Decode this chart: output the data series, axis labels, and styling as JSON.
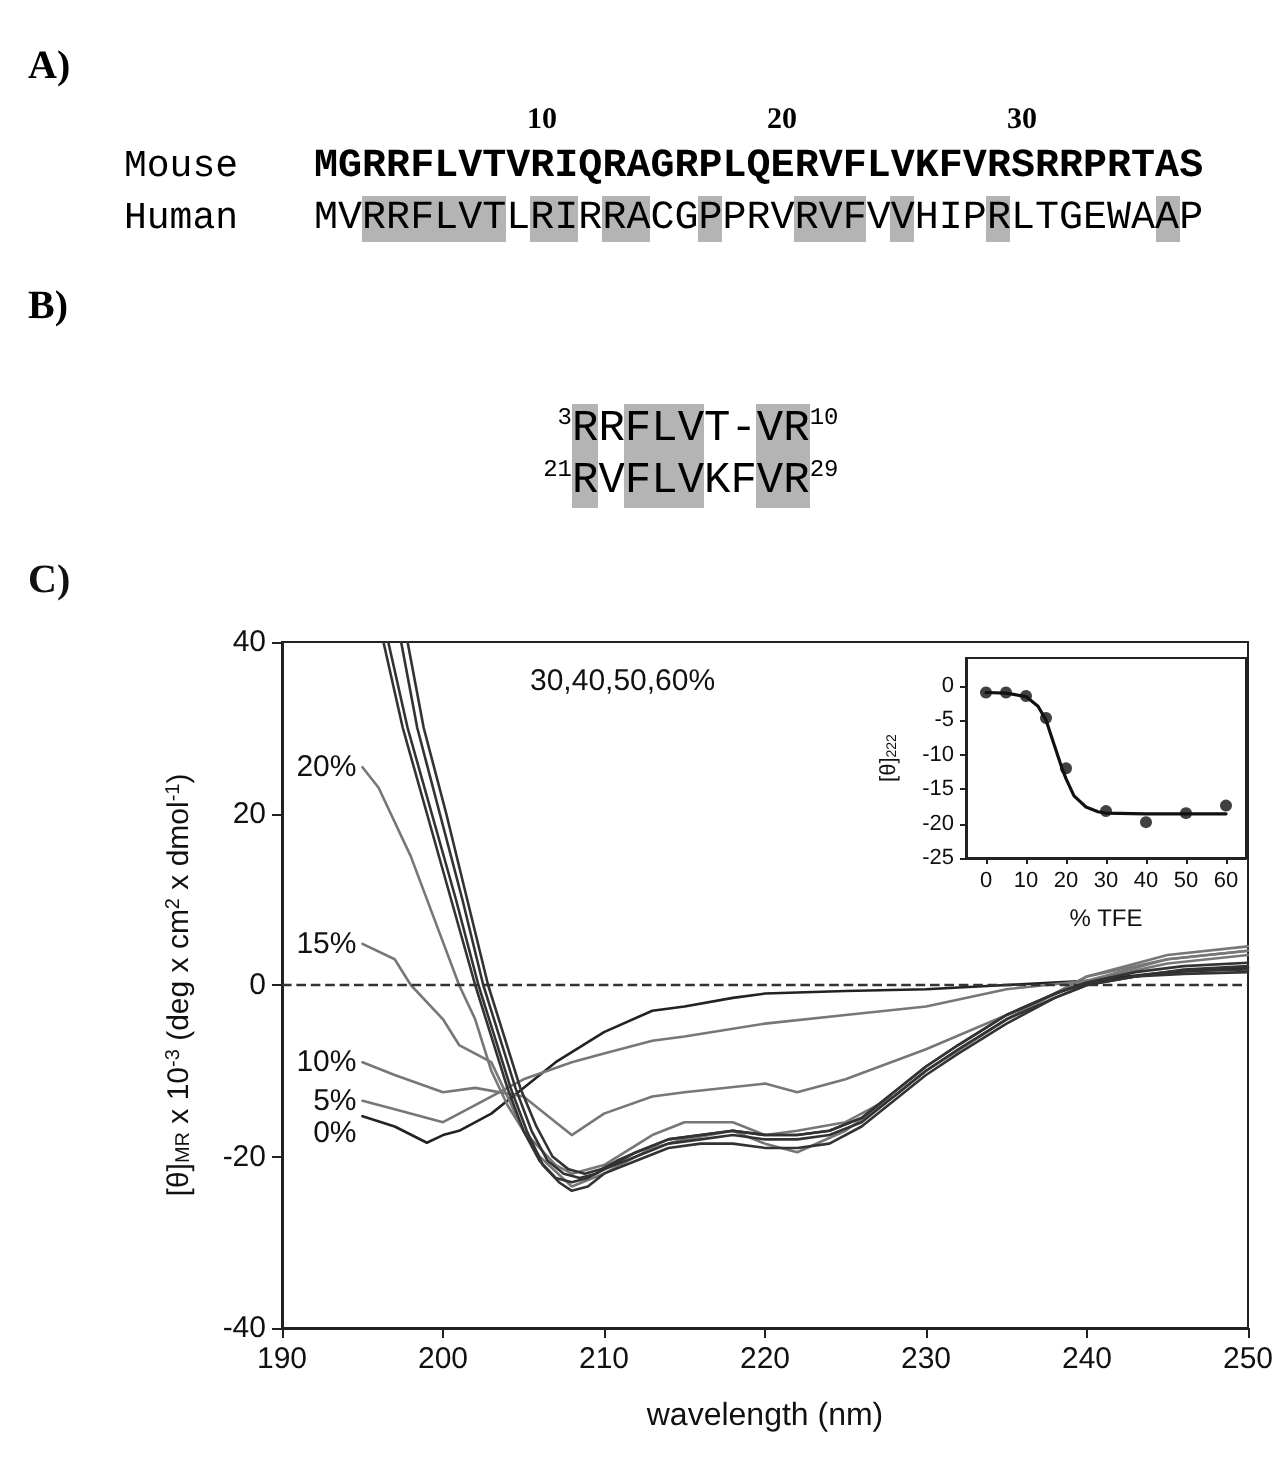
{
  "chart_data": [
    {
      "type": "other",
      "title": "A)",
      "annotations": [
        "10",
        "20",
        "30",
        "Mouse",
        "MGRRFLVTVRIQRAGRPLQERVFLVKFVRSRRPRTAS",
        "Human",
        "MVRRFLVTLRIRRACGPPRVRVFVVHIPRLTGEWAAP"
      ]
    },
    {
      "type": "other",
      "title": "B)",
      "annotations": [
        "$^{3}$RRFLVT-VR$^{10}$",
        "$^{21}$RVFLVKFVR$^{29}$"
      ]
    },
    {
      "type": "line",
      "title": "C)",
      "xlabel": "wavelength (nm)",
      "ylabel": "[θ]$_{MR}$ x 10$^{-3}$ (deg x cm$^{2}$ x dmol$^{-1}$)",
      "xlim": [
        190,
        250
      ],
      "xticks": [
        190,
        200,
        210,
        220,
        230,
        240,
        250
      ],
      "ylim": [
        -40,
        40
      ],
      "yticks": [
        -40,
        -20,
        0,
        20,
        40
      ],
      "grid": false,
      "legend": false,
      "annotations": [
        "30,40,50,60%"
      ],
      "ref_lines": [
        {
          "axis": "y",
          "value": 0,
          "line_style": "dashed",
          "color": "#333333"
        }
      ],
      "series": [
        {
          "name": "0%",
          "color": "#222222",
          "x": [
            195,
            197,
            199,
            200,
            201,
            203,
            205,
            207,
            210,
            213,
            215,
            218,
            220,
            225,
            230,
            235,
            240,
            245,
            250
          ],
          "values": [
            -15.3,
            -16.5,
            -18.4,
            -17.5,
            -17,
            -15,
            -12,
            -9,
            -5.5,
            -3,
            -2.5,
            -1.5,
            -1,
            -0.7,
            -0.5,
            0,
            0.5,
            1.5,
            2
          ]
        },
        {
          "name": "5%",
          "color": "#777777",
          "x": [
            195,
            197,
            200,
            202,
            205,
            208,
            210,
            213,
            215,
            220,
            225,
            230,
            235,
            240,
            245,
            250
          ],
          "values": [
            -13.5,
            -14.5,
            -16,
            -14,
            -11,
            -9,
            -8,
            -6.5,
            -6,
            -4.5,
            -3.5,
            -2.5,
            -0.5,
            0.5,
            2.5,
            3.5
          ]
        },
        {
          "name": "10%",
          "color": "#777777",
          "x": [
            195,
            197,
            200,
            202,
            205,
            207,
            208,
            210,
            213,
            215,
            220,
            222,
            225,
            230,
            235,
            240,
            245,
            250
          ],
          "values": [
            -9,
            -10.5,
            -12.5,
            -12,
            -13,
            -16,
            -17.5,
            -15,
            -13,
            -12.5,
            -11.5,
            -12.5,
            -11,
            -7.5,
            -3.5,
            0.5,
            3,
            4
          ]
        },
        {
          "name": "15%",
          "color": "#777777",
          "x": [
            195,
            197,
            198,
            200,
            201,
            202,
            203,
            204,
            205,
            207,
            208,
            210,
            213,
            215,
            218,
            220,
            222,
            225,
            228,
            230,
            235,
            240,
            245,
            250
          ],
          "values": [
            4.8,
            3,
            0,
            -4,
            -7,
            -8,
            -9,
            -13,
            -17,
            -21,
            -22,
            -21,
            -17.5,
            -16,
            -16,
            -17.5,
            -17,
            -16,
            -13,
            -10,
            -4,
            1,
            3.5,
            4.5
          ]
        },
        {
          "name": "20%",
          "color": "#777777",
          "x": [
            195,
            196,
            198,
            200,
            201,
            202,
            203,
            204,
            206,
            208,
            210,
            213,
            215,
            218,
            220,
            222,
            225,
            228,
            230,
            235,
            240,
            245,
            250
          ],
          "values": [
            25.4,
            23,
            15,
            5,
            0,
            -4,
            -10,
            -14,
            -20,
            -23.5,
            -22,
            -19,
            -18,
            -17,
            -18.5,
            -19.5,
            -17,
            -13,
            -10,
            -4,
            1,
            3,
            4
          ]
        },
        {
          "color": "#333333",
          "x": [
            196.3,
            197.5,
            199,
            200.5,
            202,
            203,
            204,
            205,
            206,
            207,
            208,
            209,
            210,
            212,
            214,
            216,
            218,
            220,
            222,
            224,
            226,
            228,
            230,
            232,
            235,
            238,
            240,
            243,
            246,
            250
          ],
          "values": [
            40,
            30,
            20,
            10,
            0,
            -6,
            -12,
            -17,
            -20.5,
            -22.5,
            -23,
            -22.5,
            -21.5,
            -20,
            -18.5,
            -18,
            -17.5,
            -18,
            -18,
            -17.5,
            -16,
            -13,
            -10,
            -7.5,
            -4,
            -1.5,
            0,
            1,
            1.8,
            2.2
          ]
        },
        {
          "color": "#333333",
          "x": [
            196.6,
            197.8,
            199.3,
            200.8,
            202.2,
            203.2,
            204.2,
            205.2,
            206.2,
            207.2,
            208,
            209,
            210,
            212,
            214,
            216,
            218,
            220,
            222,
            224,
            226,
            228,
            230,
            232,
            235,
            238,
            240,
            243,
            246,
            250
          ],
          "values": [
            40,
            30,
            20,
            10,
            0,
            -6,
            -12,
            -17,
            -21,
            -23,
            -24,
            -23.5,
            -22,
            -20.5,
            -19,
            -18.5,
            -18.5,
            -19,
            -19,
            -18.5,
            -16.5,
            -13.5,
            -10.5,
            -8,
            -4.5,
            -1.5,
            0,
            1,
            1.6,
            1.8
          ]
        },
        {
          "color": "#333333",
          "x": [
            197.4,
            198.4,
            199.8,
            201.2,
            202.5,
            203.5,
            204.5,
            205.5,
            206.5,
            207.5,
            208.5,
            209.5,
            210.5,
            212,
            214,
            216,
            218,
            220,
            222,
            224,
            226,
            228,
            230,
            232,
            235,
            238,
            240,
            243,
            246,
            250
          ],
          "values": [
            40,
            30,
            20,
            10,
            0,
            -6,
            -12,
            -17,
            -20.5,
            -22,
            -22.5,
            -22,
            -21,
            -19.5,
            -18,
            -17.5,
            -17,
            -17.5,
            -17.5,
            -17,
            -15.5,
            -12.5,
            -9.5,
            -7,
            -3.5,
            -1,
            0.3,
            1.5,
            2.2,
            2.6
          ]
        },
        {
          "color": "#333333",
          "x": [
            197.8,
            198.8,
            200.2,
            201.5,
            202.8,
            203.8,
            204.8,
            205.8,
            206.8,
            207.8,
            208.8,
            209.8,
            210.8,
            212,
            214,
            216,
            218,
            220,
            222,
            224,
            226,
            228,
            230,
            232,
            235,
            238,
            240,
            243,
            246,
            250
          ],
          "values": [
            40,
            30,
            20,
            10,
            0,
            -6,
            -12,
            -16.5,
            -20,
            -21.5,
            -22,
            -21.5,
            -20.5,
            -19.5,
            -18,
            -17.5,
            -17,
            -17.5,
            -17.5,
            -17,
            -15.5,
            -12.5,
            -9.5,
            -7,
            -3.5,
            -1,
            0.2,
            1,
            1.3,
            1.5
          ]
        }
      ]
    },
    {
      "type": "scatter",
      "xlabel": "% TFE",
      "ylabel": "[θ]$_{222}$",
      "xlim": [
        -5,
        65
      ],
      "xticks": [
        0,
        10,
        20,
        30,
        40,
        50,
        60
      ],
      "ylim": [
        -25,
        4
      ],
      "yticks": [
        0,
        -5,
        -10,
        -15,
        -20,
        -25
      ],
      "grid": false,
      "legend": false,
      "series": [
        {
          "type": "scatter",
          "marker": "circle",
          "color": "#111111",
          "x": [
            0,
            5,
            10,
            15,
            20,
            30,
            40,
            50,
            60
          ],
          "values": [
            -1,
            -1,
            -1.5,
            -4.7,
            -12,
            -18.2,
            -19.8,
            -18.5,
            -17.4
          ]
        },
        {
          "type": "line",
          "marker": "none",
          "color": "#111111",
          "x": [
            0,
            5,
            10,
            13,
            15,
            17,
            19,
            20,
            22,
            25,
            28,
            30,
            40,
            50,
            60
          ],
          "values": [
            -1,
            -1.1,
            -1.6,
            -3,
            -5,
            -8.5,
            -12,
            -13.5,
            -16,
            -17.6,
            -18.3,
            -18.5,
            -18.6,
            -18.6,
            -18.6
          ]
        }
      ]
    }
  ]
}
